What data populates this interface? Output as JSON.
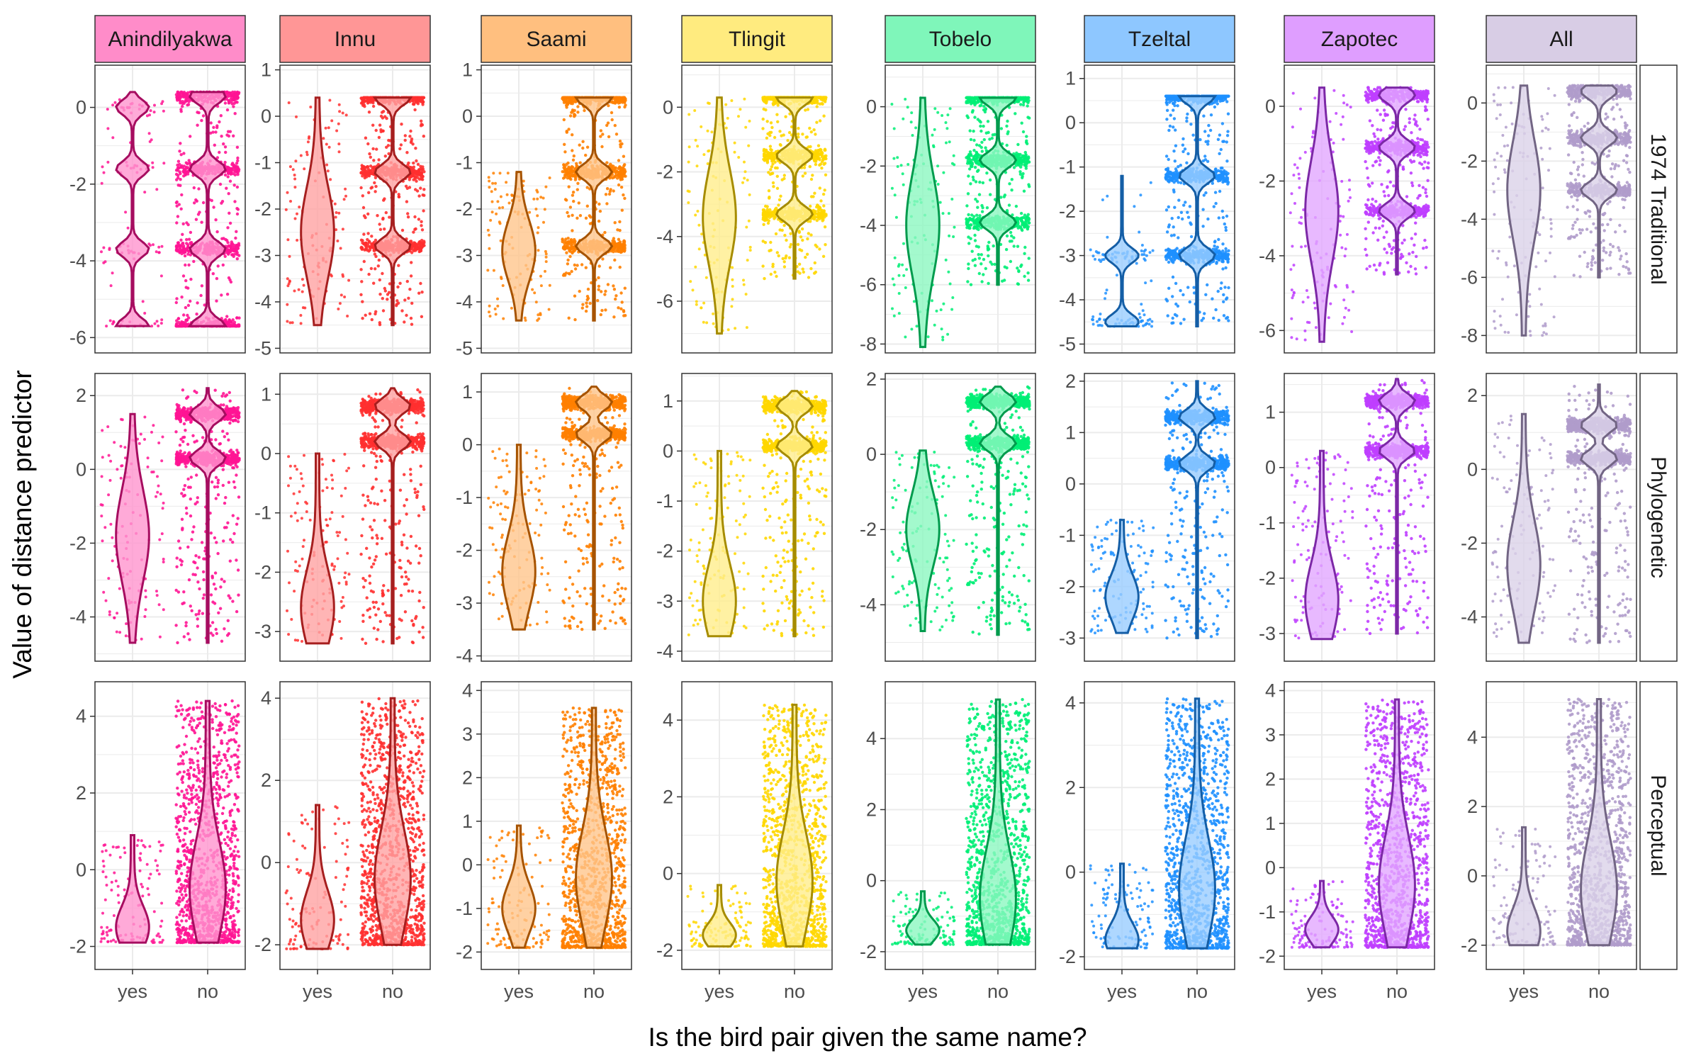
{
  "chart_data": {
    "type": "violin",
    "xlabel": "Is the bird pair given the same name?",
    "ylabel": "Value of distance predictor",
    "categories": [
      "yes",
      "no"
    ],
    "columns": [
      {
        "name": "Anindilyakwa",
        "color": "#FF1493",
        "strip": "#FF8CC9"
      },
      {
        "name": "Innu",
        "color": "#FF3030",
        "strip": "#FF9696"
      },
      {
        "name": "Saami",
        "color": "#FF8000",
        "strip": "#FFBF7F"
      },
      {
        "name": "Tlingit",
        "color": "#FFD700",
        "strip": "#FFEB7F"
      },
      {
        "name": "Tobelo",
        "color": "#00EE76",
        "strip": "#7FF6BA"
      },
      {
        "name": "Tzeltal",
        "color": "#1E90FF",
        "strip": "#8EC7FF"
      },
      {
        "name": "Zapotec",
        "color": "#BF3EFF",
        "strip": "#DF9EFF"
      },
      {
        "name": "All",
        "color": "#B09CCB",
        "strip": "#D8CDE5"
      }
    ],
    "rows": [
      "1974 Traditional",
      "Phylogenetic",
      "Perceptual"
    ],
    "panels": [
      [
        {
          "ylim": [
            -6.4,
            1.1
          ],
          "ticks": [
            0,
            -2,
            -4,
            -6
          ],
          "yes": {
            "range": [
              -5.7,
              0.4
            ],
            "clusters": [
              0,
              -1.6,
              -3.7,
              -5.7
            ],
            "median": -1.6
          },
          "no": {
            "range": [
              -5.7,
              0.4
            ],
            "clusters": [
              0.3,
              -1.6,
              -3.7,
              -5.7
            ],
            "median": 0.3
          }
        },
        {
          "ylim": [
            -5.1,
            1.1
          ],
          "ticks": [
            1,
            0,
            -1,
            -2,
            -3,
            -4,
            -5
          ],
          "yes": {
            "range": [
              -4.5,
              0.4
            ],
            "median": -2.5
          },
          "no": {
            "range": [
              -4.5,
              0.4
            ],
            "clusters": [
              0.4,
              -1.2,
              -2.8
            ],
            "median": 0.4
          }
        },
        {
          "ylim": [
            -5.1,
            1.1
          ],
          "ticks": [
            1,
            0,
            -1,
            -2,
            -3,
            -4,
            -5
          ],
          "yes": {
            "range": [
              -4.4,
              -1.2
            ],
            "median": -2.9
          },
          "no": {
            "range": [
              -4.4,
              0.4
            ],
            "clusters": [
              0.4,
              -1.2,
              -2.8
            ],
            "median": 0.4
          }
        },
        {
          "ylim": [
            -7.6,
            1.3
          ],
          "ticks": [
            0,
            -2,
            -4,
            -6
          ],
          "yes": {
            "range": [
              -7.0,
              0.3
            ],
            "median": -3.4
          },
          "no": {
            "range": [
              -5.3,
              0.3
            ],
            "clusters": [
              0.3,
              -1.5,
              -3.3
            ],
            "median": 0.3
          }
        },
        {
          "ylim": [
            -8.3,
            1.4
          ],
          "ticks": [
            0,
            -2,
            -4,
            -6,
            -8
          ],
          "yes": {
            "range": [
              -8.1,
              0.3
            ],
            "median": -4.0
          },
          "no": {
            "range": [
              -6.0,
              0.3
            ],
            "clusters": [
              0.3,
              -1.8,
              -3.9
            ],
            "median": 0.3
          }
        },
        {
          "ylim": [
            -5.2,
            1.3
          ],
          "ticks": [
            1,
            0,
            -1,
            -2,
            -3,
            -4,
            -5
          ],
          "yes": {
            "range": [
              -4.6,
              -1.2
            ],
            "clusters": [
              -3.0,
              -4.5
            ],
            "median": -3.0
          },
          "no": {
            "range": [
              -4.6,
              0.6
            ],
            "clusters": [
              0.6,
              -1.2,
              -3.0
            ],
            "median": 0.6
          }
        },
        {
          "ylim": [
            -6.6,
            1.1
          ],
          "ticks": [
            0,
            -2,
            -4,
            -6
          ],
          "yes": {
            "range": [
              -6.3,
              0.5
            ],
            "median": -2.8
          },
          "no": {
            "range": [
              -4.5,
              0.5
            ],
            "clusters": [
              0.3,
              -1.1,
              -2.8
            ],
            "median": 0.3
          }
        },
        {
          "ylim": [
            -8.6,
            1.3
          ],
          "ticks": [
            0,
            -2,
            -4,
            -6,
            -8
          ],
          "yes": {
            "range": [
              -8.0,
              0.6
            ],
            "median": -3.0
          },
          "no": {
            "range": [
              -6.0,
              0.6
            ],
            "clusters": [
              0.4,
              -1.2,
              -3.0
            ],
            "median": 0.4
          }
        }
      ],
      [
        {
          "ylim": [
            -5.2,
            2.6
          ],
          "ticks": [
            2,
            0,
            -2,
            -4
          ],
          "yes": {
            "range": [
              -4.7,
              1.5
            ],
            "median": -1.8
          },
          "no": {
            "range": [
              -4.7,
              2.2
            ],
            "clusters": [
              1.5,
              0.3
            ],
            "median": 0.3
          }
        },
        {
          "ylim": [
            -3.5,
            1.35
          ],
          "ticks": [
            1,
            0,
            -1,
            -2,
            -3
          ],
          "yes": {
            "range": [
              -3.2,
              0.0
            ],
            "median": -2.6
          },
          "no": {
            "range": [
              -3.2,
              1.1
            ],
            "clusters": [
              0.8,
              0.2
            ],
            "median": 0.8
          }
        },
        {
          "ylim": [
            -4.1,
            1.35
          ],
          "ticks": [
            1,
            0,
            -1,
            -2,
            -3,
            -4
          ],
          "yes": {
            "range": [
              -3.5,
              0.0
            ],
            "median": -2.4
          },
          "no": {
            "range": [
              -3.5,
              1.1
            ],
            "clusters": [
              0.8,
              0.2
            ],
            "median": 0.8
          }
        },
        {
          "ylim": [
            -4.2,
            1.55
          ],
          "ticks": [
            1,
            0,
            -1,
            -2,
            -3,
            -4
          ],
          "yes": {
            "range": [
              -3.7,
              0.0
            ],
            "median": -3.0
          },
          "no": {
            "range": [
              -3.7,
              1.2
            ],
            "clusters": [
              0.9,
              0.1
            ],
            "median": 0.1
          }
        },
        {
          "ylim": [
            -5.5,
            2.15
          ],
          "ticks": [
            2,
            0,
            -2,
            -4
          ],
          "yes": {
            "range": [
              -4.7,
              0.1
            ],
            "median": -2.0
          },
          "no": {
            "range": [
              -4.8,
              1.8
            ],
            "clusters": [
              1.4,
              0.3
            ],
            "median": 0.3
          }
        },
        {
          "ylim": [
            -3.45,
            2.15
          ],
          "ticks": [
            2,
            1,
            0,
            -1,
            -2,
            -3
          ],
          "yes": {
            "range": [
              -2.9,
              -0.7
            ],
            "median": -2.2
          },
          "no": {
            "range": [
              -3.0,
              2.0
            ],
            "clusters": [
              1.3,
              0.4
            ],
            "median": 0.4
          }
        },
        {
          "ylim": [
            -3.5,
            1.7
          ],
          "ticks": [
            1,
            0,
            -1,
            -2,
            -3
          ],
          "yes": {
            "range": [
              -3.1,
              0.3
            ],
            "median": -2.4
          },
          "no": {
            "range": [
              -3.0,
              1.6
            ],
            "clusters": [
              1.2,
              0.3
            ],
            "median": 0.3
          }
        },
        {
          "ylim": [
            -5.2,
            2.6
          ],
          "ticks": [
            2,
            0,
            -2,
            -4
          ],
          "yes": {
            "range": [
              -4.7,
              1.5
            ],
            "median": -2.6
          },
          "no": {
            "range": [
              -4.7,
              2.3
            ],
            "clusters": [
              1.2,
              0.3
            ],
            "median": 0.3
          }
        }
      ],
      [
        {
          "ylim": [
            -2.6,
            4.9
          ],
          "ticks": [
            4,
            2,
            0,
            -2
          ],
          "yes": {
            "range": [
              -1.9,
              0.9
            ],
            "median": -1.5
          },
          "no": {
            "range": [
              -1.9,
              4.4
            ],
            "median": -0.5
          }
        },
        {
          "ylim": [
            -2.6,
            4.4
          ],
          "ticks": [
            4,
            2,
            0,
            -2
          ],
          "yes": {
            "range": [
              -2.1,
              1.4
            ],
            "median": -1.4
          },
          "no": {
            "range": [
              -2.0,
              4.0
            ],
            "median": -0.4
          }
        },
        {
          "ylim": [
            -2.4,
            4.2
          ],
          "ticks": [
            4,
            3,
            2,
            1,
            0,
            -1,
            -2
          ],
          "yes": {
            "range": [
              -1.9,
              0.9
            ],
            "median": -1.0
          },
          "no": {
            "range": [
              -1.9,
              3.6
            ],
            "median": -0.3
          }
        },
        {
          "ylim": [
            -2.5,
            5.0
          ],
          "ticks": [
            4,
            2,
            0,
            -2
          ],
          "yes": {
            "range": [
              -1.9,
              -0.3
            ],
            "median": -1.6
          },
          "no": {
            "range": [
              -1.9,
              4.4
            ],
            "median": -0.2
          }
        },
        {
          "ylim": [
            -2.5,
            5.6
          ],
          "ticks": [
            4,
            2,
            0,
            -2
          ],
          "yes": {
            "range": [
              -1.8,
              -0.3
            ],
            "median": -1.4
          },
          "no": {
            "range": [
              -1.8,
              5.1
            ],
            "median": -0.5
          }
        },
        {
          "ylim": [
            -2.3,
            4.5
          ],
          "ticks": [
            4,
            2,
            0,
            -2
          ],
          "yes": {
            "range": [
              -1.8,
              0.2
            ],
            "median": -1.6
          },
          "no": {
            "range": [
              -1.8,
              4.1
            ],
            "median": -0.4
          }
        },
        {
          "ylim": [
            -2.3,
            4.2
          ],
          "ticks": [
            4,
            3,
            2,
            1,
            0,
            -1,
            -2
          ],
          "yes": {
            "range": [
              -1.8,
              -0.3
            ],
            "median": -1.4
          },
          "no": {
            "range": [
              -1.8,
              3.8
            ],
            "median": -0.4
          }
        },
        {
          "ylim": [
            -2.7,
            5.6
          ],
          "ticks": [
            4,
            2,
            0,
            -2
          ],
          "yes": {
            "range": [
              -2.0,
              1.4
            ],
            "median": -1.6
          },
          "no": {
            "range": [
              -2.0,
              5.1
            ],
            "median": -0.4
          }
        }
      ]
    ]
  }
}
